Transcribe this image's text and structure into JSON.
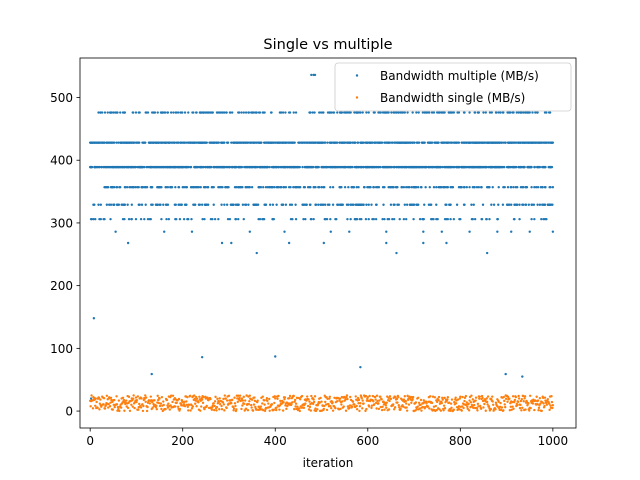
{
  "chart_data": {
    "type": "scatter",
    "title": "Single vs multiple",
    "xlabel": "iteration",
    "ylabel": "",
    "xlim": [
      -22,
      1050
    ],
    "ylim": [
      -27,
      563
    ],
    "xticks": [
      0,
      200,
      400,
      600,
      800,
      1000
    ],
    "yticks": [
      0,
      100,
      200,
      300,
      400,
      500
    ],
    "xtick_labels": [
      "0",
      "200",
      "400",
      "600",
      "800",
      "1000"
    ],
    "ytick_labels": [
      "0",
      "100",
      "200",
      "300",
      "400",
      "500"
    ],
    "legend_position": "top-right",
    "grid": false,
    "series": [
      {
        "name": "Bandwidth multiple (MB/s)",
        "color": "#1f77b4",
        "levels": [
          {
            "y": 536,
            "x": [
              478,
              483,
              486
            ]
          },
          {
            "y": 476,
            "from": 5,
            "to": 1000,
            "density": 0.25
          },
          {
            "y": 428,
            "from": 0,
            "to": 1000,
            "density": 0.6
          },
          {
            "y": 389,
            "from": 0,
            "to": 1000,
            "density": 0.6
          },
          {
            "y": 357,
            "from": 20,
            "to": 1000,
            "density": 0.25
          },
          {
            "y": 329,
            "from": 0,
            "to": 1000,
            "density": 0.2
          },
          {
            "y": 306,
            "from": 0,
            "to": 1000,
            "density": 0.12
          },
          {
            "y": 286,
            "x": [
              55,
              160,
              220,
              345,
              420,
              520,
              560,
              640,
              720,
              760,
              820,
              880,
              910,
              950,
              1000
            ]
          },
          {
            "y": 268,
            "x": [
              82,
              285,
              305,
              430,
              505,
              640,
              720,
              770
            ]
          },
          {
            "y": 252,
            "x": [
              360,
              662,
              858
            ]
          }
        ],
        "outliers": [
          {
            "x": 8,
            "y": 148
          },
          {
            "x": 242,
            "y": 86
          },
          {
            "x": 400,
            "y": 87
          },
          {
            "x": 584,
            "y": 70
          },
          {
            "x": 133,
            "y": 59
          },
          {
            "x": 898,
            "y": 59
          },
          {
            "x": 934,
            "y": 55
          },
          {
            "x": 2,
            "y": 20
          }
        ]
      },
      {
        "name": "Bandwidth single (MB/s)",
        "color": "#ff7f0e",
        "range_x": [
          0,
          1000
        ],
        "range_y": [
          0,
          25
        ],
        "points_per_iteration": 1
      }
    ]
  }
}
